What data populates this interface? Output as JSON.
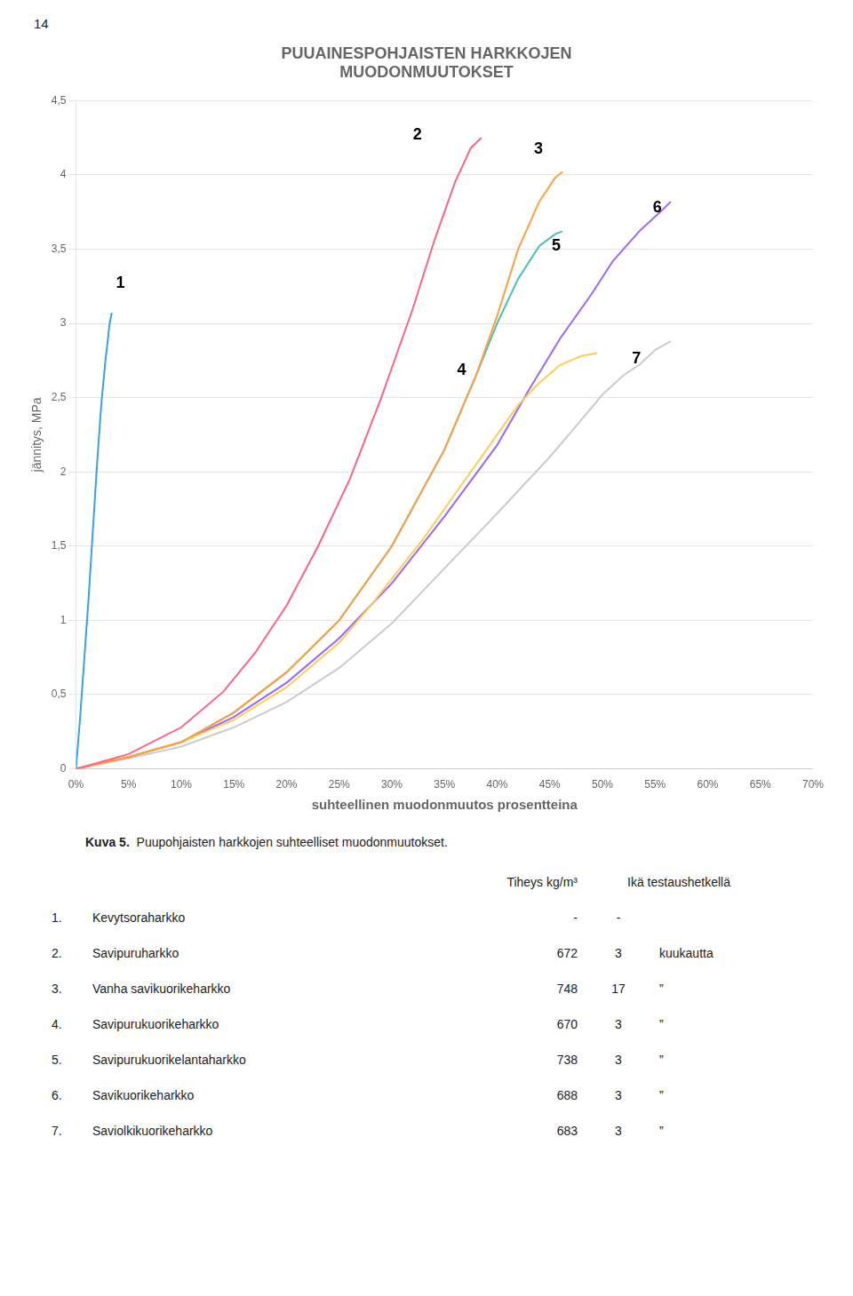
{
  "chart_data": {
    "type": "line",
    "title": [
      "PUUAINESPOHJAISTEN HARKKOJEN",
      "MUODONMUUTOKSET"
    ],
    "x_label": "suhteellinen muodonmuutos prosentteina",
    "y_label": "jännitys, MPa",
    "xlim": [
      0,
      0.7
    ],
    "ylim": [
      0,
      4.5
    ],
    "xticks": [
      {
        "value": 0,
        "label": "0%"
      },
      {
        "value": 0.05,
        "label": "5%"
      },
      {
        "value": 0.1,
        "label": "10%"
      },
      {
        "value": 0.15,
        "label": "15%"
      },
      {
        "value": 0.2,
        "label": "20%"
      },
      {
        "value": 0.25,
        "label": "25%"
      },
      {
        "value": 0.3,
        "label": "30%"
      },
      {
        "value": 0.35,
        "label": "35%"
      },
      {
        "value": 0.4,
        "label": "40%"
      },
      {
        "value": 0.45,
        "label": "45%"
      },
      {
        "value": 0.5,
        "label": "50%"
      },
      {
        "value": 0.55,
        "label": "55%"
      },
      {
        "value": 0.6,
        "label": "60%"
      },
      {
        "value": 0.65,
        "label": "65%"
      },
      {
        "value": 0.7,
        "label": "70%"
      }
    ],
    "yticks": [
      0,
      {
        "value": 0.5,
        "label": "0,5"
      },
      1,
      {
        "value": 1.5,
        "label": "1,5"
      },
      2,
      {
        "value": 2.5,
        "label": "2,5"
      },
      3,
      {
        "value": 3.5,
        "label": "3,5"
      },
      4,
      {
        "value": 4.5,
        "label": "4,5"
      }
    ],
    "grid": true,
    "series": [
      {
        "name": "1",
        "x": [
          0.0,
          0.004,
          0.008,
          0.012,
          0.016,
          0.02,
          0.024,
          0.028,
          0.032,
          0.034
        ],
        "values": [
          0.0,
          0.35,
          0.75,
          1.15,
          1.6,
          2.05,
          2.45,
          2.75,
          3.0,
          3.07
        ]
      },
      {
        "name": "2",
        "x": [
          0.0,
          0.05,
          0.1,
          0.14,
          0.17,
          0.2,
          0.23,
          0.26,
          0.29,
          0.32,
          0.34,
          0.36,
          0.375,
          0.385
        ],
        "values": [
          0.0,
          0.1,
          0.28,
          0.52,
          0.78,
          1.1,
          1.5,
          1.95,
          2.5,
          3.1,
          3.55,
          3.95,
          4.18,
          4.25
        ]
      },
      {
        "name": "3",
        "x": [
          0.0,
          0.05,
          0.1,
          0.15,
          0.2,
          0.25,
          0.3,
          0.35,
          0.38,
          0.4,
          0.42,
          0.44,
          0.455,
          0.462
        ],
        "values": [
          0.0,
          0.08,
          0.18,
          0.38,
          0.65,
          1.0,
          1.5,
          2.15,
          2.65,
          3.05,
          3.5,
          3.82,
          3.98,
          4.02
        ]
      },
      {
        "name": "4",
        "x": [
          0.0,
          0.05,
          0.1,
          0.15,
          0.2,
          0.25,
          0.28,
          0.3,
          0.33,
          0.36,
          0.38,
          0.4,
          0.42,
          0.44,
          0.46,
          0.48,
          0.495
        ],
        "values": [
          0.0,
          0.08,
          0.18,
          0.33,
          0.55,
          0.85,
          1.1,
          1.28,
          1.55,
          1.85,
          2.05,
          2.25,
          2.45,
          2.6,
          2.72,
          2.78,
          2.8
        ]
      },
      {
        "name": "5",
        "x": [
          0.0,
          0.05,
          0.1,
          0.15,
          0.2,
          0.25,
          0.3,
          0.35,
          0.38,
          0.4,
          0.42,
          0.44,
          0.455,
          0.462
        ],
        "values": [
          0.0,
          0.08,
          0.18,
          0.38,
          0.65,
          1.0,
          1.5,
          2.15,
          2.65,
          3.0,
          3.3,
          3.52,
          3.6,
          3.62
        ]
      },
      {
        "name": "6",
        "x": [
          0.0,
          0.05,
          0.1,
          0.15,
          0.2,
          0.25,
          0.3,
          0.35,
          0.4,
          0.43,
          0.46,
          0.49,
          0.51,
          0.535,
          0.555,
          0.565
        ],
        "values": [
          0.0,
          0.08,
          0.18,
          0.35,
          0.58,
          0.88,
          1.25,
          1.7,
          2.18,
          2.55,
          2.9,
          3.2,
          3.42,
          3.62,
          3.75,
          3.82
        ]
      },
      {
        "name": "7",
        "x": [
          0.0,
          0.05,
          0.1,
          0.15,
          0.2,
          0.25,
          0.3,
          0.35,
          0.4,
          0.45,
          0.48,
          0.5,
          0.52,
          0.535,
          0.55,
          0.565
        ],
        "values": [
          0.0,
          0.07,
          0.15,
          0.28,
          0.45,
          0.68,
          0.98,
          1.35,
          1.72,
          2.1,
          2.35,
          2.52,
          2.65,
          2.72,
          2.82,
          2.88
        ]
      }
    ],
    "annotations": [
      {
        "text": "1",
        "x": 0.038,
        "y": 3.27
      },
      {
        "text": "2",
        "x": 0.32,
        "y": 4.27
      },
      {
        "text": "3",
        "x": 0.435,
        "y": 4.17
      },
      {
        "text": "4",
        "x": 0.362,
        "y": 2.68
      },
      {
        "text": "5",
        "x": 0.452,
        "y": 3.52
      },
      {
        "text": "6",
        "x": 0.548,
        "y": 3.78
      },
      {
        "text": "7",
        "x": 0.528,
        "y": 2.76
      }
    ],
    "page_number": "14",
    "caption": {
      "label": "Kuva 5.",
      "text": "  Puupohjaisten harkkojen suhteelliset muodonmuutokset."
    },
    "table": {
      "header": [
        "Tiheys kg/m³",
        "Ikä testaushetkellä"
      ],
      "rows": [
        [
          "1.",
          "Kevytsoraharkko",
          "-",
          "-"
        ],
        [
          "2.",
          "Savipuruharkko",
          "672",
          "3",
          "kuukautta"
        ],
        [
          "3.",
          "Vanha savikuorikeharkko",
          "748",
          "17",
          "”"
        ],
        [
          "4.",
          "Savipurukuorikeharkko",
          "670",
          "3",
          "”"
        ],
        [
          "5.",
          "Savipurukuorikelantaharkko",
          "738",
          "3",
          "”"
        ],
        [
          "6.",
          "Savikuorikeharkko",
          "688",
          "3",
          "”"
        ],
        [
          "7.",
          "Saviolkikuorikeharkko",
          "683",
          "3",
          "”"
        ]
      ]
    }
  }
}
